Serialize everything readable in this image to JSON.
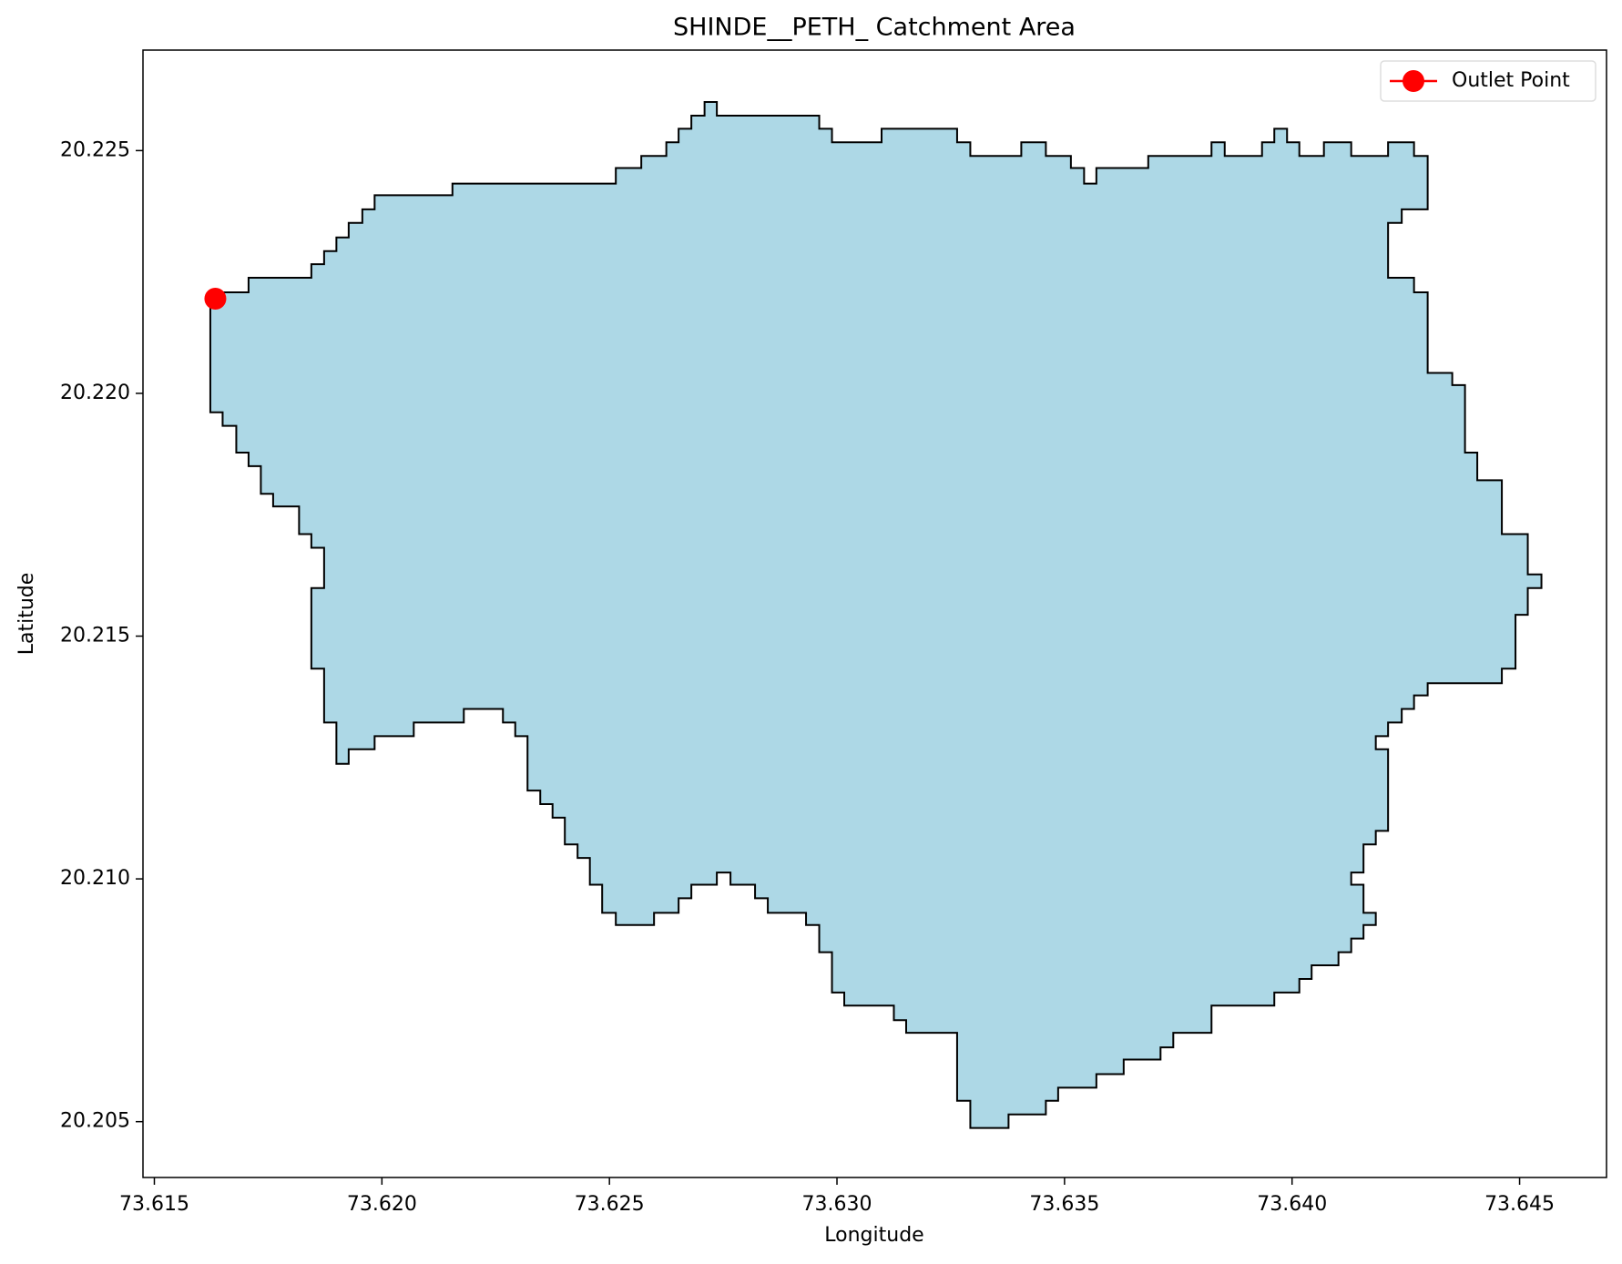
{
  "chart_data": {
    "type": "polygon",
    "title": "SHINDE__PETH_ Catchment Area",
    "xlabel": "Longitude",
    "ylabel": "Latitude",
    "xlim": [
      73.61475,
      73.64691
    ],
    "ylim": [
      20.20385,
      20.22707
    ],
    "xticks": [
      73.615,
      {
        "value": 73.62,
        "label": "73.620"
      },
      73.625,
      {
        "value": 73.63,
        "label": "73.630"
      },
      73.635,
      {
        "value": 73.64,
        "label": "73.640"
      },
      73.645
    ],
    "yticks": [
      20.205,
      {
        "value": 20.21,
        "label": "20.210"
      },
      20.215,
      {
        "value": 20.22,
        "label": "20.220"
      },
      20.225
    ],
    "grid": false,
    "legend": "upper right",
    "area": {
      "fill": "#add8e6",
      "edge": "#000000",
      "x": [
        73.61623,
        73.61707,
        73.61707,
        73.61845,
        73.61845,
        73.61873,
        73.61873,
        73.619,
        73.619,
        73.61927,
        73.61927,
        73.61957,
        73.61957,
        73.61984,
        73.61984,
        73.62155,
        73.62155,
        73.62514,
        73.62514,
        73.6257,
        73.6257,
        73.62625,
        73.62625,
        73.62652,
        73.62652,
        73.6268,
        73.6268,
        73.62709,
        73.62709,
        73.62736,
        73.62736,
        73.62961,
        73.62961,
        73.62989,
        73.62989,
        73.63098,
        73.63098,
        73.63264,
        73.63264,
        73.63293,
        73.63293,
        73.63405,
        73.63405,
        73.63459,
        73.63459,
        73.63514,
        73.63514,
        73.63543,
        73.63543,
        73.6357,
        73.6357,
        73.63684,
        73.63684,
        73.63823,
        73.63823,
        73.63852,
        73.63852,
        73.63934,
        73.63934,
        73.63961,
        73.63961,
        73.63989,
        73.63989,
        73.64016,
        73.64016,
        73.6407,
        73.6407,
        73.6413,
        73.6413,
        73.64211,
        73.64211,
        73.64268,
        73.64268,
        73.64298,
        73.64298,
        73.64241,
        73.64241,
        73.64211,
        73.64211,
        73.64268,
        73.64268,
        73.64298,
        73.64298,
        73.64352,
        73.64352,
        73.6438,
        73.6438,
        73.64407,
        73.64407,
        73.64461,
        73.64461,
        73.64518,
        73.64518,
        73.64548,
        73.64548,
        73.64518,
        73.64518,
        73.64491,
        73.64491,
        73.64461,
        73.64461,
        73.64298,
        73.64298,
        73.64268,
        73.64268,
        73.64241,
        73.64241,
        73.64211,
        73.64211,
        73.64184,
        73.64184,
        73.64211,
        73.64211,
        73.64184,
        73.64184,
        73.64157,
        73.64157,
        73.6413,
        73.6413,
        73.64157,
        73.64157,
        73.64184,
        73.64184,
        73.64157,
        73.64157,
        73.6413,
        73.6413,
        73.64102,
        73.64102,
        73.64043,
        73.64043,
        73.64016,
        73.64016,
        73.63961,
        73.63961,
        73.63823,
        73.63823,
        73.63739,
        73.63739,
        73.63711,
        73.63711,
        73.6363,
        73.6363,
        73.6357,
        73.6357,
        73.63486,
        73.63486,
        73.63459,
        73.63459,
        73.63377,
        73.63377,
        73.63293,
        73.63293,
        73.63264,
        73.63264,
        73.63152,
        73.63152,
        73.63125,
        73.63125,
        73.63016,
        73.63016,
        73.62989,
        73.62989,
        73.62961,
        73.62961,
        73.62932,
        73.62932,
        73.62848,
        73.62848,
        73.6282,
        73.6282,
        73.62766,
        73.62766,
        73.62736,
        73.62736,
        73.6268,
        73.6268,
        73.62652,
        73.62652,
        73.62598,
        73.62598,
        73.62514,
        73.62514,
        73.62484,
        73.62484,
        73.62457,
        73.62457,
        73.6243,
        73.6243,
        73.62402,
        73.62402,
        73.62375,
        73.62375,
        73.62348,
        73.62348,
        73.6232,
        73.6232,
        73.62293,
        73.62293,
        73.62266,
        73.62266,
        73.6218,
        73.6218,
        73.6207,
        73.6207,
        73.61984,
        73.61984,
        73.61927,
        73.61927,
        73.619,
        73.619,
        73.61873,
        73.61873,
        73.61845,
        73.61845,
        73.61873,
        73.61873,
        73.61845,
        73.61845,
        73.61818,
        73.61818,
        73.61761,
        73.61761,
        73.61734,
        73.61734,
        73.61707,
        73.61707,
        73.6168,
        73.6168,
        73.6165,
        73.6165,
        73.61623
      ],
      "y": [
        20.22208,
        20.22208,
        20.22238,
        20.22238,
        20.22266,
        20.22266,
        20.22293,
        20.22293,
        20.22321,
        20.22321,
        20.22351,
        20.22351,
        20.22379,
        20.22379,
        20.22408,
        20.22408,
        20.22432,
        20.22432,
        20.22464,
        20.22464,
        20.22489,
        20.22489,
        20.22517,
        20.22517,
        20.22545,
        20.22545,
        20.22572,
        20.22572,
        20.226,
        20.226,
        20.22572,
        20.22572,
        20.22545,
        20.22545,
        20.22517,
        20.22517,
        20.22545,
        20.22545,
        20.22517,
        20.22517,
        20.22489,
        20.22489,
        20.22517,
        20.22517,
        20.22489,
        20.22489,
        20.22464,
        20.22464,
        20.22432,
        20.22432,
        20.22464,
        20.22464,
        20.22489,
        20.22489,
        20.22517,
        20.22517,
        20.22489,
        20.22489,
        20.22517,
        20.22517,
        20.22545,
        20.22545,
        20.22517,
        20.22517,
        20.22489,
        20.22489,
        20.22517,
        20.22517,
        20.22489,
        20.22489,
        20.22517,
        20.22517,
        20.22489,
        20.22489,
        20.22379,
        20.22379,
        20.22351,
        20.22351,
        20.22238,
        20.22238,
        20.22208,
        20.22208,
        20.22042,
        20.22042,
        20.22017,
        20.22017,
        20.21878,
        20.21878,
        20.21821,
        20.21821,
        20.2171,
        20.2171,
        20.21627,
        20.21627,
        20.21599,
        20.21599,
        20.21544,
        20.21544,
        20.21433,
        20.21433,
        20.21403,
        20.21403,
        20.21378,
        20.21378,
        20.2135,
        20.2135,
        20.21322,
        20.21322,
        20.21294,
        20.21294,
        20.21267,
        20.21267,
        20.21099,
        20.21099,
        20.21071,
        20.21071,
        20.21013,
        20.21013,
        20.20988,
        20.20988,
        20.2093,
        20.2093,
        20.20905,
        20.20905,
        20.20877,
        20.20877,
        20.20849,
        20.20849,
        20.20822,
        20.20822,
        20.20794,
        20.20794,
        20.20766,
        20.20766,
        20.20739,
        20.20739,
        20.20683,
        20.20683,
        20.20653,
        20.20653,
        20.20628,
        20.20628,
        20.20598,
        20.20598,
        20.2057,
        20.2057,
        20.20543,
        20.20543,
        20.20515,
        20.20515,
        20.20487,
        20.20487,
        20.20543,
        20.20543,
        20.20683,
        20.20683,
        20.20709,
        20.20709,
        20.20739,
        20.20739,
        20.20766,
        20.20766,
        20.20849,
        20.20849,
        20.20905,
        20.20905,
        20.2093,
        20.2093,
        20.2096,
        20.2096,
        20.20988,
        20.20988,
        20.21013,
        20.21013,
        20.20988,
        20.20988,
        20.2096,
        20.2096,
        20.2093,
        20.2093,
        20.20905,
        20.20905,
        20.2093,
        20.2093,
        20.20988,
        20.20988,
        20.21043,
        20.21043,
        20.21071,
        20.21071,
        20.21126,
        20.21126,
        20.21154,
        20.21154,
        20.21182,
        20.21182,
        20.21294,
        20.21294,
        20.21322,
        20.21322,
        20.2135,
        20.2135,
        20.21322,
        20.21322,
        20.21294,
        20.21294,
        20.21267,
        20.21267,
        20.21237,
        20.21237,
        20.21322,
        20.21322,
        20.21433,
        20.21433,
        20.21599,
        20.21599,
        20.21682,
        20.21682,
        20.2171,
        20.2171,
        20.21767,
        20.21767,
        20.21793,
        20.21793,
        20.2185,
        20.2185,
        20.21878,
        20.21878,
        20.21933,
        20.21933,
        20.21961,
        20.21961
      ]
    },
    "series": [
      {
        "name": "Outlet Point",
        "color": "#ff0000",
        "x": [
          73.61634
        ],
        "y": [
          20.22195
        ]
      }
    ]
  }
}
